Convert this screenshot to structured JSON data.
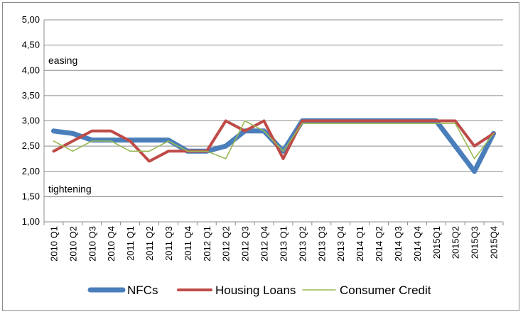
{
  "chart_data": {
    "type": "line",
    "title": "",
    "xlabel": "",
    "ylabel": "",
    "ylim": [
      1.0,
      5.0
    ],
    "y_ticks": [
      "1,00",
      "1,50",
      "2,00",
      "2,50",
      "3,00",
      "3,50",
      "4,00",
      "4,50",
      "5,00"
    ],
    "y_tick_values": [
      1.0,
      1.5,
      2.0,
      2.5,
      3.0,
      3.5,
      4.0,
      4.5,
      5.0
    ],
    "grid": "horizontal",
    "legend_position": "bottom",
    "categories": [
      "2010 Q1",
      "2010 Q2",
      "2010 Q3",
      "2010 Q4",
      "2011 Q1",
      "2011 Q2",
      "2011 Q3",
      "2011 Q4",
      "2012 Q1",
      "2012 Q2",
      "2012 Q3",
      "2012 Q4",
      "2013 Q1",
      "2013 Q2",
      "2013 Q3",
      "2013 Q4",
      "2014 Q1",
      "2014 Q2",
      "2014 Q3",
      "2014 Q4",
      "2015Q1",
      "2015Q2",
      "2015Q3",
      "2015Q4"
    ],
    "annotations": [
      {
        "text": "easing",
        "y": 4.2
      },
      {
        "text": "tightening",
        "y": 1.65
      }
    ],
    "series": [
      {
        "name": "NFCs",
        "color": "#4a7ebb",
        "width": 7,
        "values": [
          2.8,
          2.75,
          2.62,
          2.62,
          2.62,
          2.62,
          2.62,
          2.4,
          2.4,
          2.5,
          2.8,
          2.8,
          2.4,
          3.0,
          3.0,
          3.0,
          3.0,
          3.0,
          3.0,
          3.0,
          3.0,
          2.5,
          2.0,
          2.75
        ]
      },
      {
        "name": "Housing Loans",
        "color": "#be4b48",
        "width": 4,
        "values": [
          2.4,
          2.6,
          2.8,
          2.8,
          2.6,
          2.2,
          2.4,
          2.4,
          2.4,
          3.0,
          2.8,
          3.0,
          2.25,
          3.0,
          3.0,
          3.0,
          3.0,
          3.0,
          3.0,
          3.0,
          3.0,
          3.0,
          2.5,
          2.75
        ]
      },
      {
        "name": "Consumer Credit",
        "color": "#98b954",
        "width": 1.6,
        "values": [
          2.6,
          2.4,
          2.6,
          2.6,
          2.4,
          2.4,
          2.6,
          2.4,
          2.4,
          2.25,
          3.0,
          2.8,
          2.4,
          2.95,
          2.95,
          2.95,
          2.95,
          2.95,
          2.95,
          2.95,
          2.95,
          2.95,
          2.25,
          2.75
        ]
      }
    ]
  }
}
